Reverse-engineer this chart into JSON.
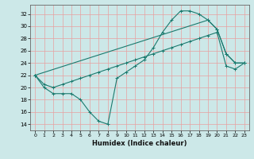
{
  "title": "",
  "xlabel": "Humidex (Indice chaleur)",
  "background_color": "#cce8e8",
  "grid_color": "#e8a0a0",
  "line_color": "#1a7a6e",
  "xlim": [
    -0.5,
    23.5
  ],
  "ylim": [
    13.0,
    33.5
  ],
  "yticks": [
    14,
    16,
    18,
    20,
    22,
    24,
    26,
    28,
    30,
    32
  ],
  "xticks": [
    0,
    1,
    2,
    3,
    4,
    5,
    6,
    7,
    8,
    9,
    10,
    11,
    12,
    13,
    14,
    15,
    16,
    17,
    18,
    19,
    20,
    21,
    22,
    23
  ],
  "curve1_x": [
    0,
    1,
    2,
    3,
    4,
    5,
    6,
    7,
    8,
    9,
    10,
    11,
    12,
    13,
    14,
    15,
    16,
    17,
    18,
    19,
    20,
    21,
    22,
    23
  ],
  "curve1_y": [
    22,
    20,
    19.0,
    19.0,
    19.0,
    18.0,
    16.0,
    14.5,
    14.0,
    21.5,
    22.5,
    23.5,
    24.5,
    26.5,
    29.0,
    31.0,
    32.5,
    32.5,
    32.0,
    31.0,
    29.5,
    25.5,
    24.0,
    24.0
  ],
  "curve2_x": [
    0,
    1,
    2,
    3,
    4,
    5,
    6,
    7,
    8,
    9,
    10,
    11,
    12,
    13,
    14,
    15,
    16,
    17,
    18,
    19,
    20,
    21,
    22,
    23
  ],
  "curve2_y": [
    22,
    20.5,
    20.0,
    20.5,
    21.0,
    21.5,
    22.0,
    22.5,
    23.0,
    23.5,
    24.0,
    24.5,
    25.0,
    25.5,
    26.0,
    26.5,
    27.0,
    27.5,
    28.0,
    28.5,
    29.0,
    23.5,
    23.0,
    24.0
  ],
  "curve3_x": [
    0,
    19,
    20,
    21,
    22,
    23
  ],
  "curve3_y": [
    22,
    31.0,
    29.5,
    25.5,
    24.0,
    24.0
  ]
}
